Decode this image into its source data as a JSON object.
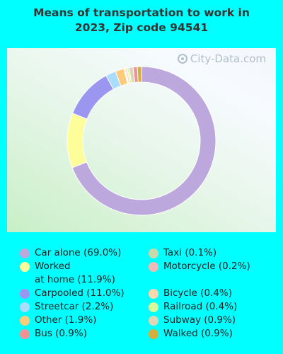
{
  "chart_data": {
    "type": "pie",
    "title_line1": "Means of transportation to work in",
    "title_line2": "2023, Zip code 94541",
    "slices": [
      {
        "name": "Car alone",
        "value": 69.0,
        "label": "Car alone (69.0%)",
        "color": "#bca8dc"
      },
      {
        "name": "Worked at home",
        "value": 11.9,
        "label": "Worked\nat home (11.9%)",
        "color": "#fdfd9a"
      },
      {
        "name": "Carpooled",
        "value": 11.0,
        "label": "Carpooled (11.0%)",
        "color": "#9b97f0"
      },
      {
        "name": "Streetcar",
        "value": 2.2,
        "label": "Streetcar (2.2%)",
        "color": "#aadcfd"
      },
      {
        "name": "Other",
        "value": 1.9,
        "label": "Other (1.9%)",
        "color": "#fdcc7b"
      },
      {
        "name": "Bus",
        "value": 0.9,
        "label": "Bus (0.9%)",
        "color": "#ee9294"
      },
      {
        "name": "Taxi",
        "value": 0.1,
        "label": "Taxi (0.1%)",
        "color": "#c7dbaa"
      },
      {
        "name": "Motorcycle",
        "value": 0.2,
        "label": "Motorcycle (0.2%)",
        "color": "#f2b9b9"
      },
      {
        "name": "Bicycle",
        "value": 0.4,
        "label": "Bicycle (0.4%)",
        "color": "#fcd9ac"
      },
      {
        "name": "Railroad",
        "value": 0.4,
        "label": "Railroad (0.4%)",
        "color": "#d8f99a"
      },
      {
        "name": "Subway",
        "value": 0.9,
        "label": "Subway (0.9%)",
        "color": "#dcd7b7"
      },
      {
        "name": "Walked",
        "value": 0.9,
        "label": "Walked (0.9%)",
        "color": "#d7ad3b"
      }
    ],
    "legend_order_left": [
      0,
      1,
      2,
      3,
      4,
      5
    ],
    "legend_order_right": [
      6,
      7,
      8,
      9,
      10,
      11
    ]
  },
  "watermark": "City-Data.com"
}
